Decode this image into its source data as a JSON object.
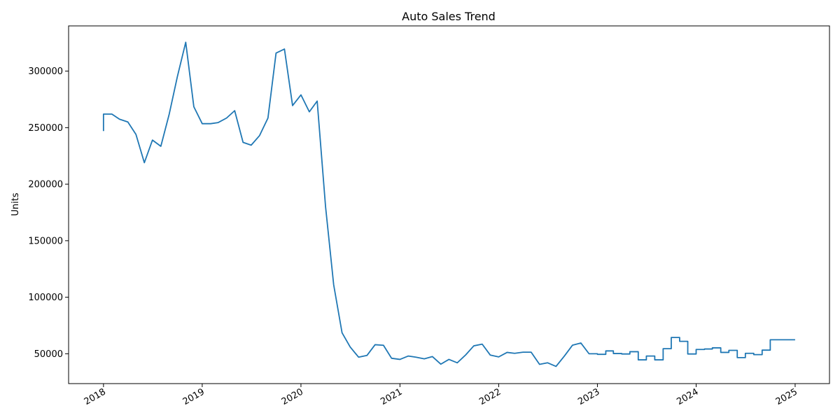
{
  "chart_data": {
    "type": "line",
    "title": "Auto Sales Trend",
    "xlabel": "",
    "ylabel": "Units",
    "xlim": [
      "2017-08-25",
      "2025-05-08"
    ],
    "ylim": [
      23600,
      340000
    ],
    "xticks": [
      "2018",
      "2019",
      "2020",
      "2021",
      "2022",
      "2023",
      "2024",
      "2025"
    ],
    "yticks": [
      50000,
      100000,
      150000,
      200000,
      250000,
      300000
    ],
    "grid": false,
    "legend": "none",
    "line_color": "#1f77b4",
    "series": [
      {
        "x": [
          "2018-01-01",
          "2018-01-01",
          "2018-02-01",
          "2018-03-01",
          "2018-04-01",
          "2018-05-01",
          "2018-06-01",
          "2018-07-01",
          "2018-08-01",
          "2018-09-01",
          "2018-10-01",
          "2018-11-01",
          "2018-12-01",
          "2019-01-01",
          "2019-02-01",
          "2019-03-01",
          "2019-04-01",
          "2019-05-01",
          "2019-06-01",
          "2019-07-01",
          "2019-08-01",
          "2019-09-01",
          "2019-10-01",
          "2019-11-01",
          "2019-12-01",
          "2020-01-01",
          "2020-02-01",
          "2020-03-01",
          "2020-04-01",
          "2020-05-01",
          "2020-06-01",
          "2020-07-01",
          "2020-08-01",
          "2020-09-01",
          "2020-10-01",
          "2020-11-01",
          "2020-12-01",
          "2021-01-01",
          "2021-02-01",
          "2021-03-01",
          "2021-04-01",
          "2021-05-01",
          "2021-06-01",
          "2021-07-01",
          "2021-08-01",
          "2021-09-01",
          "2021-10-01",
          "2021-11-01",
          "2021-12-01",
          "2022-01-01",
          "2022-02-01",
          "2022-03-01",
          "2022-04-01",
          "2022-05-01",
          "2022-06-01",
          "2022-07-01",
          "2022-08-01",
          "2022-09-01",
          "2022-10-01",
          "2022-11-01",
          "2022-12-01",
          "2023-01-01",
          "2023-01-01",
          "2023-02-01",
          "2023-02-01",
          "2023-03-01",
          "2023-03-01",
          "2023-04-01",
          "2023-04-01",
          "2023-05-01",
          "2023-05-01",
          "2023-06-01",
          "2023-06-01",
          "2023-07-01",
          "2023-07-01",
          "2023-08-01",
          "2023-08-01",
          "2023-09-01",
          "2023-09-01",
          "2023-10-01",
          "2023-10-01",
          "2023-11-01",
          "2023-11-01",
          "2023-12-01",
          "2023-12-01",
          "2024-01-01",
          "2024-01-01",
          "2024-02-01",
          "2024-02-01",
          "2024-03-01",
          "2024-03-01",
          "2024-04-01",
          "2024-04-01",
          "2024-05-01",
          "2024-05-01",
          "2024-06-01",
          "2024-06-01",
          "2024-07-01",
          "2024-07-01",
          "2024-08-01",
          "2024-08-01",
          "2024-09-01",
          "2024-09-01",
          "2024-10-01",
          "2024-10-01",
          "2024-11-01",
          "2024-12-01",
          "2025-01-01"
        ],
        "values": [
          247000,
          262000,
          262000,
          257500,
          255000,
          244000,
          219000,
          239000,
          233500,
          262000,
          295000,
          325500,
          268500,
          253500,
          253500,
          254500,
          258500,
          265000,
          237000,
          234500,
          243000,
          258500,
          316000,
          319500,
          269500,
          279000,
          264000,
          273500,
          180000,
          111000,
          68500,
          56000,
          47000,
          48500,
          58000,
          57500,
          46000,
          45000,
          48000,
          47000,
          45500,
          47500,
          40800,
          45000,
          42000,
          49000,
          57000,
          58500,
          48800,
          47200,
          51200,
          50400,
          51400,
          51400,
          40600,
          42000,
          38800,
          48000,
          57600,
          59500,
          50000,
          50000,
          49500,
          49500,
          52500,
          52500,
          50200,
          50200,
          49800,
          49800,
          51800,
          51800,
          44600,
          44600,
          48000,
          48000,
          44600,
          44600,
          54500,
          54500,
          64400,
          64400,
          61000,
          61000,
          49800,
          49800,
          53800,
          53800,
          54200,
          54200,
          55200,
          55200,
          51200,
          51200,
          53000,
          53000,
          46600,
          46600,
          50400,
          50400,
          49200,
          49200,
          53200,
          53200,
          62400,
          62400,
          62400,
          62400
        ]
      }
    ]
  }
}
